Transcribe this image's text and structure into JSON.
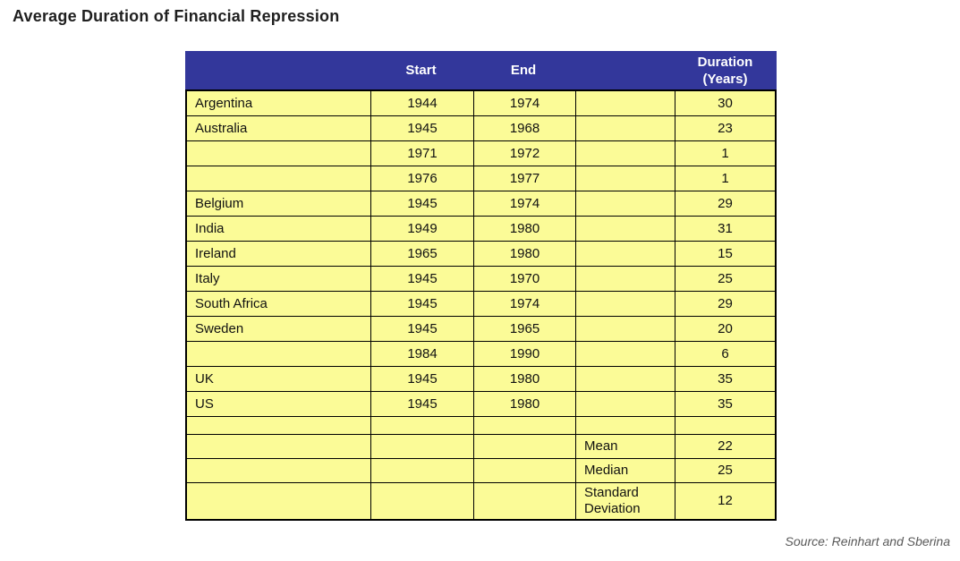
{
  "page": {
    "title": "Average Duration of Financial Repression",
    "source": "Source: Reinhart and Sberina"
  },
  "colors": {
    "header_bg": "#33379B",
    "cell_bg": "#FBFB97",
    "border": "#000000",
    "header_text": "#FFFFFF",
    "source_text": "#595959"
  },
  "chart_data": {
    "type": "table",
    "title": "Average Duration of Financial Repression",
    "columns": [
      "",
      "Start",
      "End",
      "",
      "Duration (Years)"
    ],
    "rows": [
      {
        "country": "Argentina",
        "start": "1944",
        "end": "1974",
        "stat": "",
        "duration": "30"
      },
      {
        "country": "Australia",
        "start": "1945",
        "end": "1968",
        "stat": "",
        "duration": "23"
      },
      {
        "country": "",
        "start": "1971",
        "end": "1972",
        "stat": "",
        "duration": "1"
      },
      {
        "country": "",
        "start": "1976",
        "end": "1977",
        "stat": "",
        "duration": "1"
      },
      {
        "country": "Belgium",
        "start": "1945",
        "end": "1974",
        "stat": "",
        "duration": "29"
      },
      {
        "country": "India",
        "start": "1949",
        "end": "1980",
        "stat": "",
        "duration": "31"
      },
      {
        "country": "Ireland",
        "start": "1965",
        "end": "1980",
        "stat": "",
        "duration": "15"
      },
      {
        "country": "Italy",
        "start": "1945",
        "end": "1970",
        "stat": "",
        "duration": "25"
      },
      {
        "country": "South Africa",
        "start": "1945",
        "end": "1974",
        "stat": "",
        "duration": "29"
      },
      {
        "country": "Sweden",
        "start": "1945",
        "end": "1965",
        "stat": "",
        "duration": "20"
      },
      {
        "country": "",
        "start": "1984",
        "end": "1990",
        "stat": "",
        "duration": "6"
      },
      {
        "country": "UK",
        "start": "1945",
        "end": "1980",
        "stat": "",
        "duration": "35"
      },
      {
        "country": "US",
        "start": "1945",
        "end": "1980",
        "stat": "",
        "duration": "35"
      },
      {
        "country": "",
        "start": "",
        "end": "",
        "stat": "",
        "duration": ""
      },
      {
        "country": "",
        "start": "",
        "end": "",
        "stat": "Mean",
        "duration": "22"
      },
      {
        "country": "",
        "start": "",
        "end": "",
        "stat": "Median",
        "duration": "25"
      },
      {
        "country": "",
        "start": "",
        "end": "",
        "stat": "Standard Deviation",
        "duration": "12"
      }
    ]
  }
}
